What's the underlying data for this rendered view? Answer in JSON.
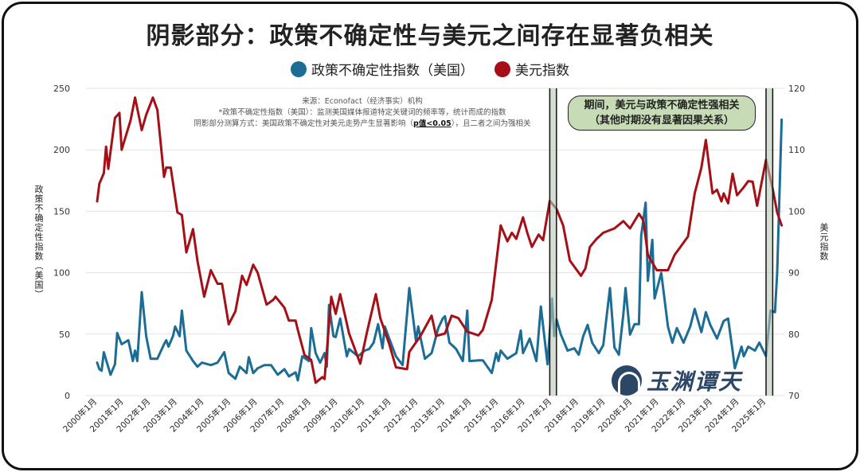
{
  "title": "阴影部分：政策不确定性与美元之间存在显著负相关",
  "note": {
    "line1": "来源：Econofact（经济事实）机构",
    "line2": "*政策不确定性指数（美国）：监测美国媒体报道特定关键词的频率等，统计而成的指数",
    "line3_pre": "阴影部分测算方式：美国政策不确定性对美元走势产生显著影响（",
    "line3_bold": "p值<0.05",
    "line3_post": "），且二者之间为强相关"
  },
  "callout": {
    "line1": "期间，美元与政策不确定性强相关",
    "line2": "（其他时期没有显著因果关系）"
  },
  "watermark": "玉渊谭天",
  "chart_data": {
    "type": "line",
    "title": "阴影部分：政策不确定性与美元之间存在显著负相关",
    "ylabel_left": "政策不确定性指数（美国）",
    "ylabel_right": "美元指数",
    "ylim_left": [
      0,
      250
    ],
    "ylim_right": [
      70,
      120
    ],
    "yticks_left": [
      "0",
      "50",
      "100",
      "150",
      "200",
      "250"
    ],
    "yticks_right": [
      "70",
      "80",
      "90",
      "100",
      "110",
      "120"
    ],
    "xticks": [
      "2000年1月",
      "2001年1月",
      "2002年1月",
      "2003年1月",
      "2004年1月",
      "2005年1月",
      "2006年1月",
      "2007年1月",
      "2008年1月",
      "2009年1月",
      "2010年1月",
      "2011年1月",
      "2012年1月",
      "2013年1月",
      "2014年1月",
      "2015年1月",
      "2016年1月",
      "2017年1月",
      "2018年1月",
      "2019年1月",
      "2020年1月",
      "2021年1月",
      "2022年1月",
      "2023年1月",
      "2024年1月",
      "2025年1月"
    ],
    "grid": true,
    "legend_position": "top-center",
    "shaded_periods": [
      [
        "2016-12",
        "2017-03"
      ],
      [
        "2025-01",
        "2025-04"
      ]
    ],
    "series": [
      {
        "name": "政策不确定性指数（美国）",
        "axis": "left",
        "color": "#1b6d96",
        "data": [
          [
            "2000-01",
            26.8
          ],
          [
            "2000-02",
            21.5
          ],
          [
            "2000-03",
            20.2
          ],
          [
            "2000-04",
            35.3
          ],
          [
            "2000-07",
            17.0
          ],
          [
            "2000-09",
            25.5
          ],
          [
            "2000-10",
            50.9
          ],
          [
            "2000-12",
            41.8
          ],
          [
            "2001-03",
            45.1
          ],
          [
            "2001-05",
            28.1
          ],
          [
            "2001-06",
            36.6
          ],
          [
            "2001-07",
            28.1
          ],
          [
            "2001-09",
            84.2
          ],
          [
            "2001-11",
            48.3
          ],
          [
            "2002-01",
            30.0
          ],
          [
            "2002-04",
            30.0
          ],
          [
            "2002-07",
            41.8
          ],
          [
            "2002-08",
            45.1
          ],
          [
            "2002-09",
            39.8
          ],
          [
            "2002-11",
            48.3
          ],
          [
            "2002-12",
            56.2
          ],
          [
            "2003-02",
            48.3
          ],
          [
            "2003-03",
            69.2
          ],
          [
            "2003-05",
            36.6
          ],
          [
            "2003-08",
            28.1
          ],
          [
            "2003-10",
            23.5
          ],
          [
            "2003-12",
            26.8
          ],
          [
            "2004-04",
            24.8
          ],
          [
            "2004-07",
            26.8
          ],
          [
            "2004-10",
            35.3
          ],
          [
            "2004-12",
            18.3
          ],
          [
            "2005-03",
            13.7
          ],
          [
            "2005-05",
            23.5
          ],
          [
            "2005-08",
            18.3
          ],
          [
            "2005-09",
            31.3
          ],
          [
            "2005-11",
            18.3
          ],
          [
            "2006-01",
            22.2
          ],
          [
            "2006-04",
            24.8
          ],
          [
            "2006-07",
            24.8
          ],
          [
            "2006-10",
            17.0
          ],
          [
            "2007-01",
            21.5
          ],
          [
            "2007-03",
            15.7
          ],
          [
            "2007-06",
            18.9
          ],
          [
            "2007-07",
            12.4
          ],
          [
            "2007-09",
            32.0
          ],
          [
            "2007-12",
            28.1
          ],
          [
            "2008-01",
            54.9
          ],
          [
            "2008-03",
            34.6
          ],
          [
            "2008-05",
            26.8
          ],
          [
            "2008-07",
            34.6
          ],
          [
            "2008-08",
            23.5
          ],
          [
            "2008-09",
            73.8
          ],
          [
            "2008-11",
            48.3
          ],
          [
            "2008-12",
            47.7
          ],
          [
            "2009-02",
            62.7
          ],
          [
            "2009-05",
            32.0
          ],
          [
            "2009-06",
            37.9
          ],
          [
            "2009-10",
            32.0
          ],
          [
            "2010-01",
            36.6
          ],
          [
            "2010-03",
            37.9
          ],
          [
            "2010-05",
            43.1
          ],
          [
            "2010-07",
            58.1
          ],
          [
            "2010-09",
            38.5
          ],
          [
            "2010-10",
            56.2
          ],
          [
            "2010-12",
            46.4
          ],
          [
            "2011-03",
            32.0
          ],
          [
            "2011-06",
            24.8
          ],
          [
            "2011-09",
            87.5
          ],
          [
            "2011-12",
            44.4
          ],
          [
            "2012-01",
            56.2
          ],
          [
            "2012-04",
            30.0
          ],
          [
            "2012-07",
            34.6
          ],
          [
            "2012-10",
            54.9
          ],
          [
            "2012-12",
            62.7
          ],
          [
            "2013-01",
            64.6
          ],
          [
            "2013-03",
            43.1
          ],
          [
            "2013-06",
            37.9
          ],
          [
            "2013-09",
            28.1
          ],
          [
            "2013-11",
            69.2
          ],
          [
            "2013-12",
            28.1
          ],
          [
            "2014-04",
            28.7
          ],
          [
            "2014-06",
            28.7
          ],
          [
            "2014-10",
            18.3
          ],
          [
            "2014-12",
            34.6
          ],
          [
            "2015-01",
            28.1
          ],
          [
            "2015-02",
            36.6
          ],
          [
            "2015-05",
            30.0
          ],
          [
            "2015-09",
            34.6
          ],
          [
            "2015-11",
            52.9
          ],
          [
            "2015-12",
            34.6
          ],
          [
            "2016-03",
            46.4
          ],
          [
            "2016-06",
            28.1
          ],
          [
            "2016-08",
            72.5
          ],
          [
            "2016-11",
            25.5
          ],
          [
            "2017-01",
            79.0
          ],
          [
            "2017-02",
            48.3
          ],
          [
            "2017-03",
            62.1
          ],
          [
            "2017-05",
            49.6
          ],
          [
            "2017-08",
            36.6
          ],
          [
            "2017-11",
            38.5
          ],
          [
            "2018-01",
            33.3
          ],
          [
            "2018-03",
            48.3
          ],
          [
            "2018-05",
            57.5
          ],
          [
            "2018-07",
            43.1
          ],
          [
            "2018-10",
            34.6
          ],
          [
            "2018-12",
            41.1
          ],
          [
            "2019-03",
            87.5
          ],
          [
            "2019-05",
            39.2
          ],
          [
            "2019-07",
            33.3
          ],
          [
            "2019-09",
            66.0
          ],
          [
            "2019-10",
            87.5
          ],
          [
            "2019-12",
            49.6
          ],
          [
            "2020-02",
            58.1
          ],
          [
            "2020-04",
            58.1
          ],
          [
            "2020-05",
            130
          ],
          [
            "2020-07",
            157
          ],
          [
            "2020-08",
            93.4
          ],
          [
            "2020-10",
            126.7
          ],
          [
            "2020-11",
            79.0
          ],
          [
            "2021-02",
            99.9
          ],
          [
            "2021-05",
            56.2
          ],
          [
            "2021-07",
            43.1
          ],
          [
            "2021-09",
            54.9
          ],
          [
            "2021-12",
            43.1
          ],
          [
            "2022-03",
            56.2
          ],
          [
            "2022-05",
            70.5
          ],
          [
            "2022-08",
            51.6
          ],
          [
            "2022-10",
            67.9
          ],
          [
            "2022-12",
            57.5
          ],
          [
            "2023-03",
            46.4
          ],
          [
            "2023-06",
            60.7
          ],
          [
            "2023-08",
            62.7
          ],
          [
            "2023-10",
            36.6
          ],
          [
            "2023-11",
            22.2
          ],
          [
            "2024-02",
            39.8
          ],
          [
            "2024-03",
            32.0
          ],
          [
            "2024-05",
            39.8
          ],
          [
            "2024-08",
            36.6
          ],
          [
            "2024-10",
            43.1
          ],
          [
            "2025-01",
            32.0
          ],
          [
            "2025-03",
            69.2
          ],
          [
            "2025-05",
            67.9
          ],
          [
            "2025-06",
            99.9
          ],
          [
            "2025-08",
            224.6
          ]
        ]
      },
      {
        "name": "美元指数",
        "axis": "right",
        "color": "#a50f15",
        "data": [
          [
            "2000-01",
            101.6
          ],
          [
            "2000-02",
            104.5
          ],
          [
            "2000-04",
            106.2
          ],
          [
            "2000-05",
            110.5
          ],
          [
            "2000-06",
            106.9
          ],
          [
            "2000-09",
            115.2
          ],
          [
            "2000-11",
            116
          ],
          [
            "2000-12",
            110
          ],
          [
            "2001-04",
            114.8
          ],
          [
            "2001-06",
            118.5
          ],
          [
            "2001-09",
            113.2
          ],
          [
            "2001-11",
            115.7
          ],
          [
            "2002-02",
            118.5
          ],
          [
            "2002-04",
            116.5
          ],
          [
            "2002-07",
            105.6
          ],
          [
            "2002-08",
            107.1
          ],
          [
            "2002-10",
            107.1
          ],
          [
            "2003-01",
            99.8
          ],
          [
            "2003-03",
            99.4
          ],
          [
            "2003-05",
            93.3
          ],
          [
            "2003-08",
            97.1
          ],
          [
            "2003-10",
            91.9
          ],
          [
            "2004-01",
            86.1
          ],
          [
            "2004-04",
            90.4
          ],
          [
            "2004-07",
            88.2
          ],
          [
            "2004-09",
            88.2
          ],
          [
            "2004-12",
            81.6
          ],
          [
            "2005-03",
            83.7
          ],
          [
            "2005-06",
            89.5
          ],
          [
            "2005-08",
            88.0
          ],
          [
            "2005-11",
            91.3
          ],
          [
            "2006-01",
            90.0
          ],
          [
            "2006-05",
            84.8
          ],
          [
            "2006-08",
            85.6
          ],
          [
            "2006-09",
            86.1
          ],
          [
            "2007-01",
            84.3
          ],
          [
            "2007-03",
            82.2
          ],
          [
            "2007-06",
            82.2
          ],
          [
            "2007-07",
            80.7
          ],
          [
            "2007-10",
            76.6
          ],
          [
            "2008-01",
            75.8
          ],
          [
            "2008-03",
            72.1
          ],
          [
            "2008-06",
            73.0
          ],
          [
            "2008-07",
            72.7
          ],
          [
            "2008-10",
            86.1
          ],
          [
            "2008-12",
            83.3
          ],
          [
            "2009-02",
            86.5
          ],
          [
            "2009-06",
            80.1
          ],
          [
            "2009-11",
            75.2
          ],
          [
            "2010-02",
            80.3
          ],
          [
            "2010-06",
            86.5
          ],
          [
            "2010-08",
            82.6
          ],
          [
            "2010-12",
            78.4
          ],
          [
            "2011-03",
            74.6
          ],
          [
            "2011-08",
            74.3
          ],
          [
            "2011-09",
            77.1
          ],
          [
            "2012-02",
            79.7
          ],
          [
            "2012-07",
            83.0
          ],
          [
            "2012-09",
            79.7
          ],
          [
            "2013-01",
            80.1
          ],
          [
            "2013-04",
            83.0
          ],
          [
            "2013-07",
            82.6
          ],
          [
            "2013-11",
            80.4
          ],
          [
            "2014-04",
            79.8
          ],
          [
            "2014-06",
            80.7
          ],
          [
            "2014-10",
            85.6
          ],
          [
            "2015-02",
            97.7
          ],
          [
            "2015-05",
            95.1
          ],
          [
            "2015-07",
            96.5
          ],
          [
            "2015-09",
            95.5
          ],
          [
            "2015-12",
            99.0
          ],
          [
            "2016-02",
            96.4
          ],
          [
            "2016-04",
            94.2
          ],
          [
            "2016-07",
            96.2
          ],
          [
            "2016-09",
            95.3
          ],
          [
            "2016-12",
            101.7
          ],
          [
            "2017-03",
            100.4
          ],
          [
            "2017-06",
            97.7
          ],
          [
            "2017-09",
            92.0
          ],
          [
            "2018-02",
            89.5
          ],
          [
            "2018-04",
            90.7
          ],
          [
            "2018-06",
            94.2
          ],
          [
            "2018-09",
            95.5
          ],
          [
            "2018-12",
            96.5
          ],
          [
            "2019-05",
            97.2
          ],
          [
            "2019-09",
            98.4
          ],
          [
            "2019-12",
            97.2
          ],
          [
            "2020-04",
            99.6
          ],
          [
            "2020-06",
            98.5
          ],
          [
            "2020-08",
            92.9
          ],
          [
            "2020-12",
            90.4
          ],
          [
            "2021-05",
            90.4
          ],
          [
            "2021-08",
            92.9
          ],
          [
            "2022-02",
            95.9
          ],
          [
            "2022-05",
            102.9
          ],
          [
            "2022-08",
            107.1
          ],
          [
            "2022-10",
            111.6
          ],
          [
            "2023-01",
            102.9
          ],
          [
            "2023-03",
            103.5
          ],
          [
            "2023-05",
            101.6
          ],
          [
            "2023-06",
            102.9
          ],
          [
            "2023-08",
            101.3
          ],
          [
            "2023-10",
            106.1
          ],
          [
            "2023-12",
            102.6
          ],
          [
            "2024-03",
            103.9
          ],
          [
            "2024-05",
            104.9
          ],
          [
            "2024-07",
            104.8
          ],
          [
            "2024-09",
            100.9
          ],
          [
            "2025-01",
            108.4
          ],
          [
            "2025-04",
            103.6
          ],
          [
            "2025-06",
            99.8
          ],
          [
            "2025-08",
            97.7
          ]
        ]
      }
    ]
  }
}
